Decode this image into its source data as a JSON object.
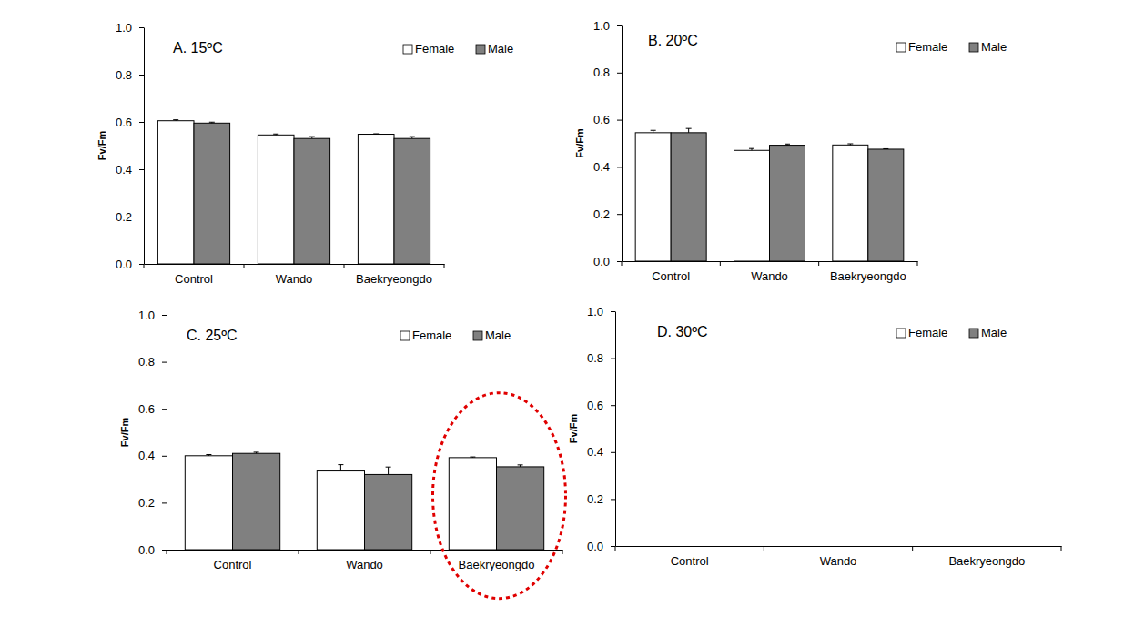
{
  "chart_data": [
    {
      "type": "bar",
      "title": "A. 15ºC",
      "ylabel": "Fv/Fm",
      "categories": [
        "Control",
        "Wando",
        "Baekryeongdo"
      ],
      "series": [
        {
          "name": "Female",
          "color": "#ffffff",
          "values": [
            0.605,
            0.545,
            0.548
          ],
          "errors": [
            0.004,
            0.004,
            0.002
          ]
        },
        {
          "name": "Male",
          "color": "#808080",
          "values": [
            0.595,
            0.53,
            0.53
          ],
          "errors": [
            0.004,
            0.008,
            0.008
          ]
        }
      ],
      "ylim": [
        0,
        1
      ],
      "yticks": [
        {
          "value": 0,
          "label": "0.0"
        },
        {
          "value": 0.2,
          "label": "0.2"
        },
        {
          "value": 0.4,
          "label": "0.4"
        },
        {
          "value": 0.6,
          "label": "0.6"
        },
        {
          "value": 0.8,
          "label": "0.8"
        },
        {
          "value": 1,
          "label": "1.0"
        }
      ],
      "legend": "top-right"
    },
    {
      "type": "bar",
      "title": "B. 20ºC",
      "ylabel": "Fv/Fm",
      "categories": [
        "Control",
        "Wando",
        "Baekryeongdo"
      ],
      "series": [
        {
          "name": "Female",
          "color": "#ffffff",
          "values": [
            0.545,
            0.47,
            0.493
          ],
          "errors": [
            0.01,
            0.008,
            0.005
          ]
        },
        {
          "name": "Male",
          "color": "#808080",
          "values": [
            0.545,
            0.492,
            0.475
          ],
          "errors": [
            0.018,
            0.005,
            0.002
          ]
        }
      ],
      "ylim": [
        0,
        1
      ],
      "yticks": [
        {
          "value": 0,
          "label": "0.0"
        },
        {
          "value": 0.2,
          "label": "0.2"
        },
        {
          "value": 0.4,
          "label": "0.4"
        },
        {
          "value": 0.6,
          "label": "0.6"
        },
        {
          "value": 0.8,
          "label": "0.8"
        },
        {
          "value": 1,
          "label": "1.0"
        }
      ],
      "legend": "top-right"
    },
    {
      "type": "bar",
      "title": "C. 25ºC",
      "ylabel": "Fv/Fm",
      "categories": [
        "Control",
        "Wando",
        "Baekryeongdo"
      ],
      "series": [
        {
          "name": "Female",
          "color": "#ffffff",
          "values": [
            0.4,
            0.335,
            0.392
          ],
          "errors": [
            0.005,
            0.027,
            0.003
          ]
        },
        {
          "name": "Male",
          "color": "#808080",
          "values": [
            0.41,
            0.32,
            0.353
          ],
          "errors": [
            0.005,
            0.032,
            0.008
          ]
        }
      ],
      "ylim": [
        0,
        1
      ],
      "yticks": [
        {
          "value": 0,
          "label": "0.0"
        },
        {
          "value": 0.2,
          "label": "0.2"
        },
        {
          "value": 0.4,
          "label": "0.4"
        },
        {
          "value": 0.6,
          "label": "0.6"
        },
        {
          "value": 0.8,
          "label": "0.8"
        },
        {
          "value": 1,
          "label": "1.0"
        }
      ],
      "legend": "top-right"
    },
    {
      "type": "bar",
      "title": "D. 30ºC",
      "ylabel": "Fv/Fm",
      "categories": [
        "Control",
        "Wando",
        "Baekryeongdo"
      ],
      "series": [
        {
          "name": "Female",
          "color": "#ffffff",
          "values": [
            null,
            null,
            null
          ],
          "errors": [
            null,
            null,
            null
          ]
        },
        {
          "name": "Male",
          "color": "#808080",
          "values": [
            null,
            null,
            null
          ],
          "errors": [
            null,
            null,
            null
          ]
        }
      ],
      "ylim": [
        0,
        1
      ],
      "yticks": [
        {
          "value": 0,
          "label": "0.0"
        },
        {
          "value": 0.2,
          "label": "0.2"
        },
        {
          "value": 0.4,
          "label": "0.4"
        },
        {
          "value": 0.6,
          "label": "0.6"
        },
        {
          "value": 0.8,
          "label": "0.8"
        },
        {
          "value": 1,
          "label": "1.0"
        }
      ],
      "legend": "top-right"
    }
  ]
}
